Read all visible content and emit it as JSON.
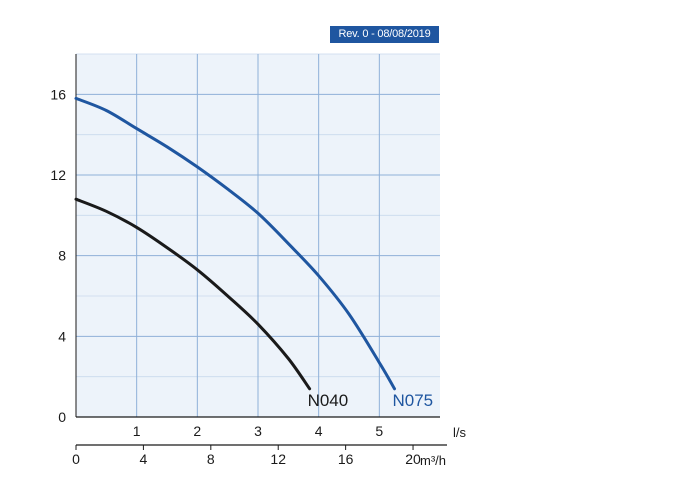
{
  "badge": {
    "text": "Rev. 0 - 08/08/2019",
    "color": "#1f56a0"
  },
  "colors": {
    "plot_bg": "#edf3fa",
    "grid": "#8fb0d8",
    "axis": "#1a1a1a"
  },
  "chart_data": {
    "type": "line",
    "title": "",
    "xlabel": "l/s",
    "x2label": "m³/h",
    "ylabel": "",
    "xlim": [
      0,
      6
    ],
    "ylim": [
      0,
      18
    ],
    "x_ticks": [
      {
        "value": 1,
        "label": "1"
      },
      {
        "value": 2,
        "label": "2"
      },
      {
        "value": 3,
        "label": "3"
      },
      {
        "value": 4,
        "label": "4"
      },
      {
        "value": 5,
        "label": "5"
      }
    ],
    "x2_ticks": [
      {
        "value": 0,
        "label": "0"
      },
      {
        "value": 4,
        "label": "4"
      },
      {
        "value": 8,
        "label": "8"
      },
      {
        "value": 12,
        "label": "12"
      },
      {
        "value": 16,
        "label": "16"
      },
      {
        "value": 20,
        "label": "20"
      }
    ],
    "y_ticks": [
      {
        "value": 0,
        "label": "0"
      },
      {
        "value": 4,
        "label": "4"
      },
      {
        "value": 8,
        "label": "8"
      },
      {
        "value": 12,
        "label": "12"
      },
      {
        "value": 16,
        "label": "16"
      }
    ],
    "grid": true,
    "series": [
      {
        "name": "N040",
        "color": "#1a1a1a",
        "points": [
          [
            0,
            10.8
          ],
          [
            0.5,
            10.2
          ],
          [
            1,
            9.4
          ],
          [
            1.5,
            8.4
          ],
          [
            2,
            7.3
          ],
          [
            2.5,
            6.0
          ],
          [
            3,
            4.6
          ],
          [
            3.5,
            2.9
          ],
          [
            3.85,
            1.4
          ]
        ]
      },
      {
        "name": "N075",
        "color": "#1f56a0",
        "points": [
          [
            0,
            15.8
          ],
          [
            0.5,
            15.2
          ],
          [
            1,
            14.3
          ],
          [
            1.5,
            13.4
          ],
          [
            2,
            12.4
          ],
          [
            2.5,
            11.3
          ],
          [
            3,
            10.1
          ],
          [
            3.5,
            8.6
          ],
          [
            4,
            7.0
          ],
          [
            4.5,
            5.1
          ],
          [
            5,
            2.7
          ],
          [
            5.25,
            1.4
          ]
        ]
      }
    ]
  }
}
